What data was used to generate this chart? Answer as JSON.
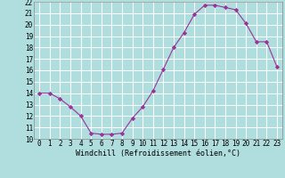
{
  "x": [
    0,
    1,
    2,
    3,
    4,
    5,
    6,
    7,
    8,
    9,
    10,
    11,
    12,
    13,
    14,
    15,
    16,
    17,
    18,
    19,
    20,
    21,
    22,
    23
  ],
  "y": [
    14.0,
    14.0,
    13.5,
    12.8,
    12.0,
    10.5,
    10.4,
    10.4,
    10.5,
    11.8,
    12.8,
    14.2,
    16.1,
    18.0,
    19.3,
    20.9,
    21.7,
    21.7,
    21.5,
    21.3,
    20.1,
    18.5,
    18.5,
    16.3
  ],
  "line_color": "#993399",
  "marker": "D",
  "marker_size": 2.2,
  "bg_color": "#b0dede",
  "grid_color": "#ffffff",
  "xlabel": "Windchill (Refroidissement éolien,°C)",
  "xlim_min": -0.5,
  "xlim_max": 23.5,
  "ylim_min": 10,
  "ylim_max": 22,
  "xticks": [
    0,
    1,
    2,
    3,
    4,
    5,
    6,
    7,
    8,
    9,
    10,
    11,
    12,
    13,
    14,
    15,
    16,
    17,
    18,
    19,
    20,
    21,
    22,
    23
  ],
  "yticks": [
    10,
    11,
    12,
    13,
    14,
    15,
    16,
    17,
    18,
    19,
    20,
    21,
    22
  ],
  "tick_fontsize": 5.5,
  "label_fontsize": 6.0
}
